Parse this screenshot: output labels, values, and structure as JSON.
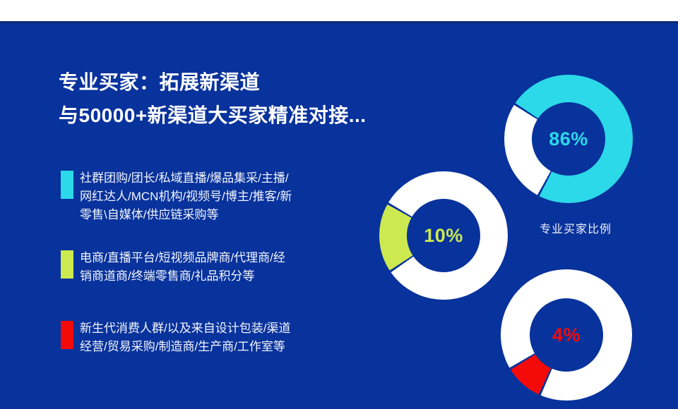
{
  "page": {
    "background_color": "#08329c",
    "top_strip_color": "#ffffff",
    "top_strip_edge_color": "#0d2b75"
  },
  "title": {
    "line1": "专业买家：拓展新渠道",
    "line2": "与50000+新渠道大买家精准对接..."
  },
  "bullet_groups": [
    {
      "marker_color": "#2bd9e8",
      "lines": [
        "社群团购/团长/私域直播/爆品集采/主播/",
        "网红达人/MCN机构/视频号/博主/推客/新",
        "零售\\自媒体/供应链采购等"
      ]
    },
    {
      "marker_color": "#cce94f",
      "lines": [
        "电商/直播平台/短视频品牌商/代理商/经",
        "销商道商/终端零售商/礼品积分等"
      ]
    },
    {
      "marker_color": "#f50a0a",
      "lines": [
        "新生代消费人群/以及来自设计包装/渠道",
        "经营/贸易采购/制造商/生产商/工作室等"
      ]
    }
  ],
  "chart_data": {
    "type": "pie",
    "title": "专业买家比例",
    "legend_position": "none",
    "donuts": [
      {
        "label": "86%",
        "value": 86,
        "ring_color": "#2bd9e8",
        "wedge_color": "#ffffff",
        "wedge_start_deg": 209,
        "wedge_end_deg": 302,
        "label_color": "#2bd9e8"
      },
      {
        "label": "10%",
        "value": 10,
        "ring_color": "#ffffff",
        "wedge_color": "#cce94f",
        "wedge_start_deg": 237,
        "wedge_end_deg": 299,
        "label_color": "#cce94f"
      },
      {
        "label": "4%",
        "value": 4,
        "ring_color": "#ffffff",
        "wedge_color": "#f50a0a",
        "wedge_start_deg": 205,
        "wedge_end_deg": 238,
        "label_color": "#f50a0a"
      }
    ]
  }
}
